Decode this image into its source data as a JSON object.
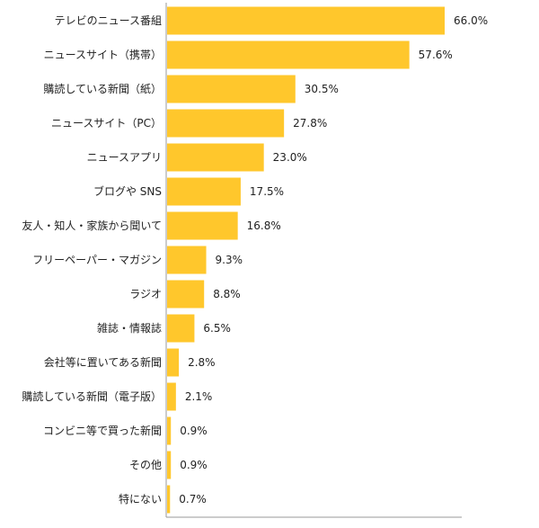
{
  "chart_data": {
    "type": "bar",
    "orientation": "horizontal",
    "categories": [
      "テレビのニュース番組",
      "ニュースサイト（携帯）",
      "購読している新聞（紙）",
      "ニュースサイト（PC）",
      "ニュースアプリ",
      "ブログや SNS",
      "友人・知人・家族から聞いて",
      "フリーペーパー・マガジン",
      "ラジオ",
      "雑誌・情報誌",
      "会社等に置いてある新聞",
      "購読している新聞（電子版）",
      "コンビニ等で買った新聞",
      "その他",
      "特にない"
    ],
    "values": [
      66.0,
      57.6,
      30.5,
      27.8,
      23.0,
      17.5,
      16.8,
      9.3,
      8.8,
      6.5,
      2.8,
      2.1,
      0.9,
      0.9,
      0.7
    ],
    "value_labels": [
      "66.0%",
      "57.6%",
      "30.5%",
      "27.8%",
      "23.0%",
      "17.5%",
      "16.8%",
      "9.3%",
      "8.8%",
      "6.5%",
      "2.8%",
      "2.1%",
      "0.9%",
      "0.9%",
      "0.7%"
    ],
    "title": "",
    "xlabel": "",
    "ylabel": "",
    "xlim": [
      0,
      100
    ],
    "grid": false,
    "legend": "none",
    "colors": {
      "bar": "#FFC72C",
      "axis": "#9a9a9a",
      "text": "#222222"
    }
  }
}
